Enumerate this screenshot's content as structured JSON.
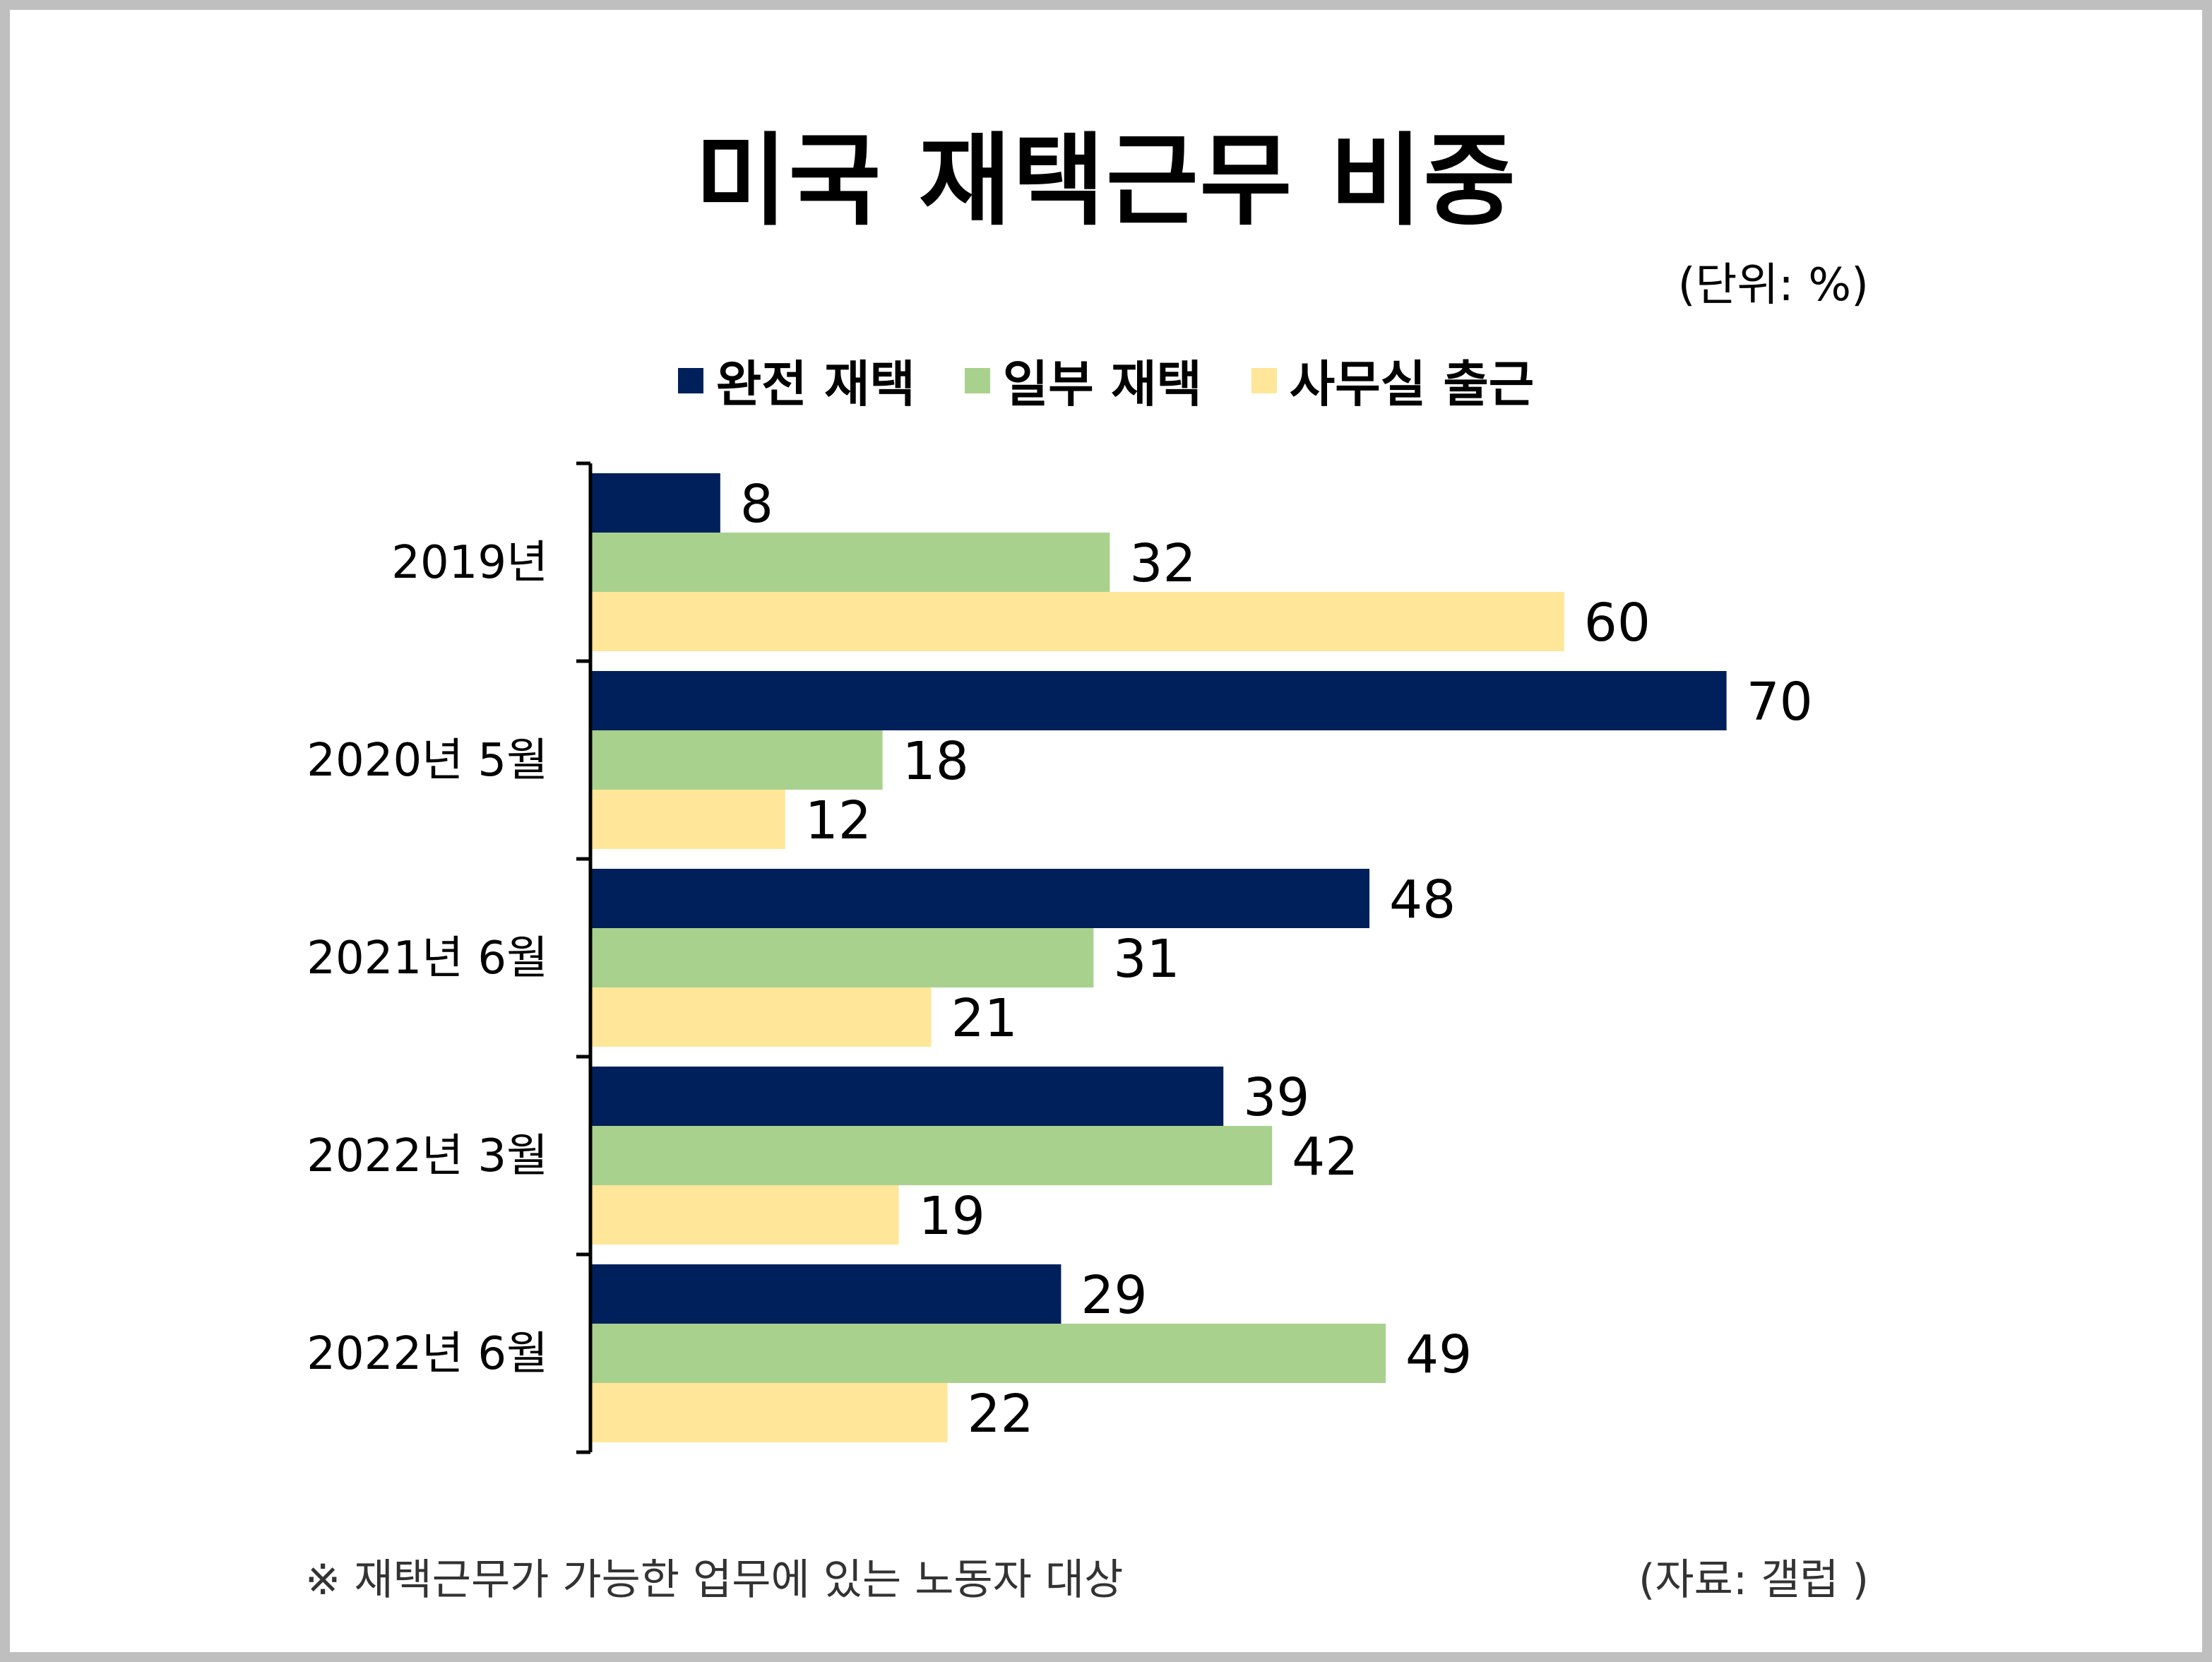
{
  "title": "미국 재택근무 비중",
  "unit_label": "(단위: %)",
  "note": "※ 재택근무가 가능한 업무에 있는 노동자 대상",
  "source": "(자료: 갤럽 )",
  "colors": {
    "full_remote": "#00205b",
    "hybrid": "#a9d18e",
    "office": "#ffe699",
    "frame": "#bfbfbf"
  },
  "chart_data": {
    "type": "bar",
    "orientation": "horizontal",
    "title": "미국 재택근무 비중",
    "categories": [
      "2019년",
      "2020년 5월",
      "2021년 6월",
      "2022년 3월",
      "2022년 6월"
    ],
    "series": [
      {
        "name": "완전 재택",
        "color": "#00205b",
        "values": [
          8,
          70,
          48,
          39,
          29
        ]
      },
      {
        "name": "일부 재택",
        "color": "#a9d18e",
        "values": [
          32,
          18,
          31,
          42,
          49
        ]
      },
      {
        "name": "사무실 출근",
        "color": "#ffe699",
        "values": [
          60,
          12,
          21,
          19,
          22
        ]
      }
    ],
    "xlim": [
      0,
      100
    ],
    "grid": false,
    "legend": "top-center",
    "data_labels": true
  }
}
